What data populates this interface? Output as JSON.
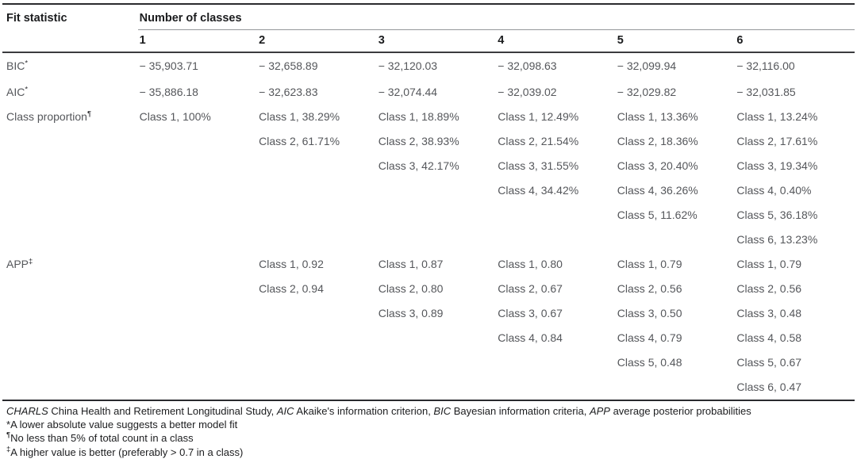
{
  "table": {
    "corner_header": "Fit statistic",
    "group_header": "Number of classes",
    "column_headers": [
      "1",
      "2",
      "3",
      "4",
      "5",
      "6"
    ],
    "stat_rows": [
      {
        "label": "BIC",
        "superscript": "*",
        "values": [
          "− 35,903.71",
          "− 32,658.89",
          "− 32,120.03",
          "− 32,098.63",
          "− 32,099.94",
          "− 32,116.00"
        ]
      },
      {
        "label": "AIC",
        "superscript": "*",
        "values": [
          "− 35,886.18",
          "− 32,623.83",
          "− 32,074.44",
          "− 32,039.02",
          "− 32,029.82",
          "− 32,031.85"
        ]
      }
    ],
    "multi_rows": [
      {
        "label": "Class proportion",
        "superscript": "¶",
        "columns": [
          [
            "Class 1, 100%"
          ],
          [
            "Class 1, 38.29%",
            "Class 2, 61.71%"
          ],
          [
            "Class 1, 18.89%",
            "Class 2, 38.93%",
            "Class 3, 42.17%"
          ],
          [
            "Class 1, 12.49%",
            "Class 2, 21.54%",
            "Class 3, 31.55%",
            "Class 4, 34.42%"
          ],
          [
            "Class 1, 13.36%",
            "Class 2, 18.36%",
            "Class 3, 20.40%",
            "Class 4, 36.26%",
            "Class 5, 11.62%"
          ],
          [
            "Class 1, 13.24%",
            "Class 2, 17.61%",
            "Class 3, 19.34%",
            "Class 4, 0.40%",
            "Class 5, 36.18%",
            "Class 6, 13.23%"
          ]
        ]
      },
      {
        "label": "APP",
        "superscript": "‡",
        "columns": [
          [],
          [
            "Class 1, 0.92",
            "Class 2, 0.94"
          ],
          [
            "Class 1, 0.87",
            "Class 2, 0.80",
            "Class 3, 0.89"
          ],
          [
            "Class 1, 0.80",
            "Class 2, 0.67",
            "Class 3, 0.67",
            "Class 4, 0.84"
          ],
          [
            "Class 1, 0.79",
            "Class 2, 0.56",
            "Class 3, 0.50",
            "Class 4, 0.79",
            "Class 5, 0.48"
          ],
          [
            "Class 1, 0.79",
            "Class 2, 0.56",
            "Class 3, 0.48",
            "Class 4, 0.58",
            "Class 5, 0.67",
            "Class 6, 0.47"
          ]
        ]
      }
    ]
  },
  "footnotes": {
    "abbreviations": [
      {
        "term": "CHARLS",
        "definition": "China Health and Retirement Longitudinal Study"
      },
      {
        "term": "AIC",
        "definition": "Akaike's information criterion"
      },
      {
        "term": "BIC",
        "definition": "Bayesian information criteria"
      },
      {
        "term": "APP",
        "definition": "average posterior probabilities"
      }
    ],
    "notes": [
      {
        "marker": "*",
        "superscript_marker": false,
        "text": "A lower absolute value suggests a better model fit"
      },
      {
        "marker": "¶",
        "superscript_marker": true,
        "text": "No less than 5% of total count in a class"
      },
      {
        "marker": "‡",
        "superscript_marker": true,
        "text": "A higher value is better (preferably > 0.7 in a class)"
      }
    ]
  },
  "colors": {
    "body_text": "#55575b",
    "header_text": "#1b1c1e",
    "rule_dark": "#2a2b2e",
    "rule_light": "#95979a",
    "background": "#ffffff"
  }
}
